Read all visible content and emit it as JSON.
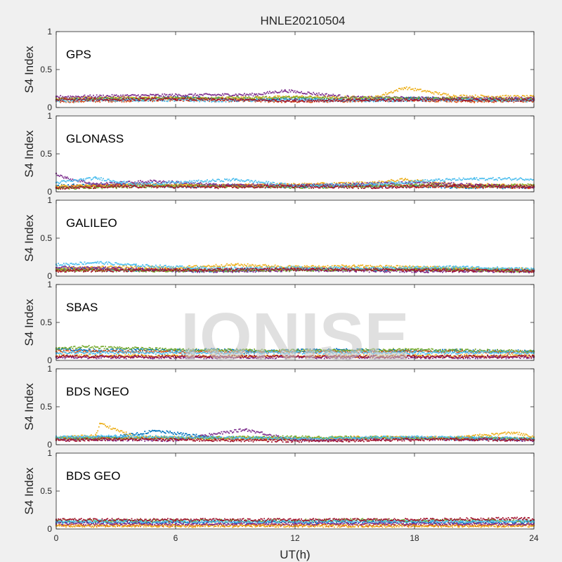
{
  "watermark": "IONISE",
  "chart_data": {
    "type": "scatter",
    "title": "HNLE20210504",
    "xlabel": "UT(h)",
    "ylabel": "S4 Index",
    "xlim": [
      0,
      24
    ],
    "ylim": [
      0,
      1
    ],
    "xticks": [
      "0",
      "6",
      "12",
      "18",
      "24"
    ],
    "yticks": [
      "0",
      "0.5",
      "1"
    ],
    "grid": false,
    "series_colors": [
      "#0072BD",
      "#D95319",
      "#EDB120",
      "#7E2F8E",
      "#77AC30",
      "#4DBEEE",
      "#A2142F"
    ],
    "panels": [
      {
        "name": "GPS",
        "series": [
          {
            "x": [
              0,
              2,
              4,
              6,
              8,
              10,
              12,
              14,
              16,
              18,
              20,
              22,
              24
            ],
            "y": [
              0.1,
              0.12,
              0.11,
              0.13,
              0.12,
              0.1,
              0.12,
              0.09,
              0.1,
              0.12,
              0.11,
              0.1,
              0.11
            ]
          },
          {
            "x": [
              0,
              3,
              6,
              9,
              12,
              15,
              18,
              21,
              24
            ],
            "y": [
              0.08,
              0.09,
              0.1,
              0.09,
              0.08,
              0.09,
              0.1,
              0.08,
              0.09
            ]
          },
          {
            "x": [
              0,
              4,
              8,
              12,
              16,
              17.5,
              20,
              24
            ],
            "y": [
              0.12,
              0.13,
              0.12,
              0.14,
              0.13,
              0.26,
              0.15,
              0.14
            ]
          },
          {
            "x": [
              0,
              5,
              10,
              11.5,
              15,
              20,
              24
            ],
            "y": [
              0.14,
              0.16,
              0.17,
              0.22,
              0.13,
              0.12,
              0.12
            ]
          },
          {
            "x": [
              0,
              6,
              12,
              18,
              24
            ],
            "y": [
              0.11,
              0.12,
              0.13,
              0.12,
              0.1
            ]
          },
          {
            "x": [
              0,
              4,
              8,
              12,
              16,
              20,
              24
            ],
            "y": [
              0.09,
              0.1,
              0.09,
              0.1,
              0.09,
              0.1,
              0.09
            ]
          },
          {
            "x": [
              0,
              6,
              12,
              18,
              24
            ],
            "y": [
              0.1,
              0.11,
              0.09,
              0.1,
              0.1
            ]
          }
        ]
      },
      {
        "name": "GLONASS",
        "series": [
          {
            "x": [
              0,
              3,
              6,
              9,
              12,
              15,
              18,
              21,
              24
            ],
            "y": [
              0.08,
              0.09,
              0.07,
              0.08,
              0.07,
              0.08,
              0.07,
              0.06,
              0.06
            ]
          },
          {
            "x": [
              0,
              4,
              8,
              12,
              16,
              20,
              24
            ],
            "y": [
              0.06,
              0.1,
              0.08,
              0.09,
              0.08,
              0.07,
              0.06
            ]
          },
          {
            "x": [
              0,
              4,
              8,
              13,
              16,
              17.5,
              20,
              24
            ],
            "y": [
              0.07,
              0.09,
              0.08,
              0.1,
              0.12,
              0.16,
              0.1,
              0.08
            ]
          },
          {
            "x": [
              0,
              0.5,
              2,
              5,
              8,
              12,
              15,
              18,
              24
            ],
            "y": [
              0.24,
              0.18,
              0.1,
              0.14,
              0.09,
              0.08,
              0.1,
              0.12,
              0.06
            ]
          },
          {
            "x": [
              0,
              3,
              6,
              9,
              12,
              15,
              18,
              21,
              24
            ],
            "y": [
              0.05,
              0.06,
              0.08,
              0.07,
              0.06,
              0.07,
              0.09,
              0.07,
              0.09
            ]
          },
          {
            "x": [
              0,
              2,
              4,
              6,
              9,
              12,
              16,
              19,
              21
            ],
            "y": [
              0.12,
              0.18,
              0.1,
              0.12,
              0.16,
              0.08,
              0.1,
              0.15,
              0.17
            ]
          },
          {
            "x": [
              0,
              4,
              8,
              12,
              16,
              20,
              24
            ],
            "y": [
              0.05,
              0.07,
              0.06,
              0.07,
              0.06,
              0.08,
              0.07
            ]
          }
        ]
      },
      {
        "name": "GALILEO",
        "series": [
          {
            "x": [
              0,
              4,
              8,
              12,
              16,
              20,
              24
            ],
            "y": [
              0.09,
              0.08,
              0.07,
              0.09,
              0.08,
              0.09,
              0.08
            ]
          },
          {
            "x": [
              0,
              4,
              8,
              12,
              16,
              20,
              24
            ],
            "y": [
              0.08,
              0.09,
              0.08,
              0.1,
              0.09,
              0.08,
              0.07
            ]
          },
          {
            "x": [
              0,
              3,
              6,
              9,
              12,
              15,
              18,
              21,
              24
            ],
            "y": [
              0.1,
              0.12,
              0.11,
              0.15,
              0.12,
              0.13,
              0.12,
              0.1,
              0.09
            ]
          },
          {
            "x": [
              0,
              3,
              6,
              9,
              12,
              15,
              18,
              21,
              24
            ],
            "y": [
              0.11,
              0.1,
              0.07,
              0.06,
              0.08,
              0.07,
              0.06,
              0.07,
              0.06
            ]
          },
          {
            "x": [
              0,
              6,
              12,
              18,
              24
            ],
            "y": [
              0.08,
              0.07,
              0.08,
              0.09,
              0.07
            ]
          },
          {
            "x": [
              0,
              2,
              4,
              8,
              12,
              16,
              20,
              24
            ],
            "y": [
              0.15,
              0.18,
              0.14,
              0.1,
              0.11,
              0.1,
              0.12,
              0.09
            ]
          },
          {
            "x": [
              0,
              6,
              12,
              18,
              24
            ],
            "y": [
              0.07,
              0.08,
              0.09,
              0.08,
              0.07
            ]
          }
        ]
      },
      {
        "name": "SBAS",
        "series": [
          {
            "x": [
              0,
              2,
              4,
              6,
              8,
              10,
              12,
              14,
              16,
              18,
              20,
              22,
              24
            ],
            "y": [
              0.15,
              0.13,
              0.14,
              0.13,
              0.14,
              0.12,
              0.13,
              0.14,
              0.13,
              0.12,
              0.13,
              0.12,
              0.12
            ]
          },
          {
            "x": [
              0,
              6,
              12,
              18,
              24
            ],
            "y": [
              0.12,
              0.11,
              0.11,
              0.12,
              0.11
            ]
          },
          {
            "x": [
              0,
              6,
              12,
              18,
              24
            ],
            "y": [
              0.06,
              0.06,
              0.05,
              0.06,
              0.06
            ]
          },
          {
            "x": [
              0,
              6,
              12,
              18,
              24
            ],
            "y": [
              0.04,
              0.04,
              0.04,
              0.04,
              0.04
            ]
          },
          {
            "x": [
              0,
              1.5,
              6,
              12,
              18,
              24
            ],
            "y": [
              0.15,
              0.18,
              0.14,
              0.13,
              0.14,
              0.12
            ]
          },
          {
            "x": [
              0,
              6,
              12,
              18,
              24
            ],
            "y": [
              0.1,
              0.1,
              0.1,
              0.1,
              0.1
            ]
          },
          {
            "x": [
              0,
              6,
              12,
              18,
              24
            ],
            "y": [
              0.05,
              0.05,
              0.05,
              0.05,
              0.05
            ]
          }
        ]
      },
      {
        "name": "BDS NGEO",
        "series": [
          {
            "x": [
              0,
              3,
              5,
              8,
              12,
              16,
              20,
              24
            ],
            "y": [
              0.09,
              0.1,
              0.18,
              0.09,
              0.08,
              0.09,
              0.08,
              0.07
            ]
          },
          {
            "x": [
              0,
              4,
              8,
              12,
              16,
              20,
              24
            ],
            "y": [
              0.08,
              0.09,
              0.08,
              0.07,
              0.08,
              0.09,
              0.07
            ]
          },
          {
            "x": [
              0,
              2,
              2.2,
              4,
              8,
              12,
              16,
              20,
              23,
              24
            ],
            "y": [
              0.09,
              0.12,
              0.28,
              0.1,
              0.09,
              0.08,
              0.1,
              0.09,
              0.16,
              0.1
            ]
          },
          {
            "x": [
              0,
              6,
              9.5,
              12,
              18,
              24
            ],
            "y": [
              0.07,
              0.06,
              0.2,
              0.06,
              0.08,
              0.06
            ]
          },
          {
            "x": [
              0,
              6,
              12,
              18,
              24
            ],
            "y": [
              0.08,
              0.09,
              0.1,
              0.09,
              0.08
            ]
          },
          {
            "x": [
              0,
              3,
              6,
              9,
              12,
              15,
              18,
              21,
              24
            ],
            "y": [
              0.1,
              0.11,
              0.1,
              0.09,
              0.08,
              0.09,
              0.1,
              0.09,
              0.08
            ]
          },
          {
            "x": [
              0,
              4,
              8,
              12,
              16,
              20,
              24
            ],
            "y": [
              0.06,
              0.07,
              0.06,
              0.05,
              0.06,
              0.07,
              0.06
            ]
          }
        ]
      },
      {
        "name": "BDS GEO",
        "series": [
          {
            "x": [
              0,
              6,
              12,
              18,
              24
            ],
            "y": [
              0.09,
              0.09,
              0.09,
              0.09,
              0.09
            ]
          },
          {
            "x": [
              0,
              6,
              12,
              18,
              24
            ],
            "y": [
              0.05,
              0.05,
              0.05,
              0.05,
              0.05
            ]
          },
          {
            "x": [
              0,
              6,
              12,
              18,
              24
            ],
            "y": [
              0.04,
              0.04,
              0.04,
              0.04,
              0.04
            ]
          },
          {
            "x": [
              0,
              6,
              12,
              18,
              24
            ],
            "y": [
              0.07,
              0.07,
              0.07,
              0.07,
              0.07
            ]
          },
          {
            "x": [
              0,
              6,
              12,
              15.5,
              18,
              24
            ],
            "y": [
              0.11,
              0.11,
              0.11,
              0.12,
              0.11,
              0.11
            ]
          },
          {
            "x": [
              0,
              6,
              12,
              18,
              24
            ],
            "y": [
              0.1,
              0.1,
              0.1,
              0.1,
              0.1
            ]
          },
          {
            "x": [
              0,
              6,
              12,
              18,
              23.5,
              24
            ],
            "y": [
              0.12,
              0.12,
              0.12,
              0.12,
              0.14,
              0.12
            ]
          }
        ]
      }
    ]
  }
}
